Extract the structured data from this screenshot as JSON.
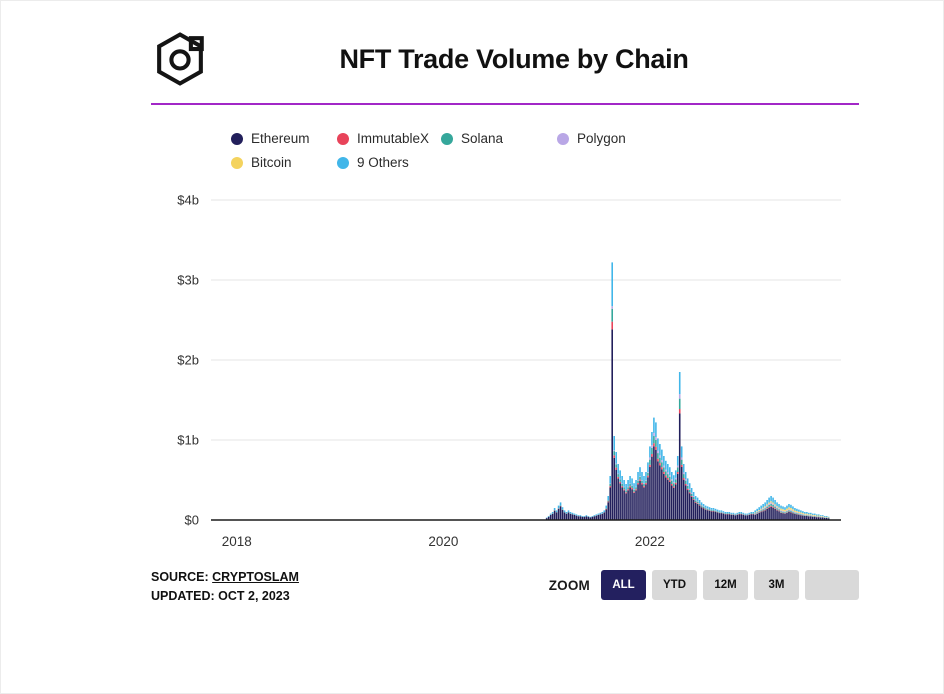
{
  "header": {
    "title": "NFT Trade Volume by Chain",
    "logo": "the-block-cube-logo"
  },
  "accent": {
    "rule_color": "#A227C7",
    "active_button_bg": "#23205F"
  },
  "footer": {
    "source_label": "SOURCE:",
    "source_value": "CRYPTOSLAM",
    "updated_label": "UPDATED:",
    "updated_value": "OCT 2, 2023"
  },
  "zoom": {
    "label": "ZOOM",
    "buttons": [
      {
        "label": "ALL",
        "active": true
      },
      {
        "label": "YTD",
        "active": false
      },
      {
        "label": "12M",
        "active": false
      },
      {
        "label": "3M",
        "active": false
      },
      {
        "label": "",
        "active": false
      }
    ]
  },
  "chart_data": {
    "type": "bar",
    "stacked": true,
    "title": "NFT Trade Volume by Chain",
    "unit": "USD billions per week",
    "y_ticks": [
      "$0",
      "$1b",
      "$2b",
      "$3b",
      "$4b"
    ],
    "y_tick_values": [
      0,
      1,
      2,
      3,
      4
    ],
    "ylim": [
      0,
      4
    ],
    "x_ticks": [
      2018,
      2020,
      2022
    ],
    "x_range": [
      2017.75,
      2023.85
    ],
    "grid": true,
    "legend_position": "top",
    "series": [
      {
        "name": "Ethereum",
        "color": "#221F5B"
      },
      {
        "name": "ImmutableX",
        "color": "#E8435A"
      },
      {
        "name": "Solana",
        "color": "#35A79B"
      },
      {
        "name": "Polygon",
        "color": "#B9A7E6"
      },
      {
        "name": "Bitcoin",
        "color": "#F4D35E"
      },
      {
        "name": "9 Others",
        "color": "#41B6E9"
      }
    ],
    "weeks_start": 2021.0,
    "weeks_step_years": 0.019231,
    "totals_billions": [
      0.03,
      0.05,
      0.08,
      0.1,
      0.15,
      0.12,
      0.18,
      0.22,
      0.16,
      0.12,
      0.1,
      0.12,
      0.1,
      0.09,
      0.08,
      0.07,
      0.06,
      0.06,
      0.05,
      0.05,
      0.06,
      0.05,
      0.04,
      0.05,
      0.06,
      0.07,
      0.08,
      0.09,
      0.1,
      0.12,
      0.18,
      0.3,
      0.55,
      3.22,
      1.05,
      0.85,
      0.7,
      0.62,
      0.55,
      0.5,
      0.45,
      0.5,
      0.55,
      0.52,
      0.46,
      0.5,
      0.6,
      0.66,
      0.6,
      0.55,
      0.6,
      0.72,
      0.92,
      1.1,
      1.28,
      1.22,
      1.02,
      0.95,
      0.88,
      0.8,
      0.74,
      0.7,
      0.66,
      0.6,
      0.56,
      0.62,
      0.8,
      1.85,
      0.92,
      0.7,
      0.6,
      0.52,
      0.46,
      0.4,
      0.35,
      0.3,
      0.28,
      0.25,
      0.22,
      0.2,
      0.18,
      0.17,
      0.16,
      0.15,
      0.15,
      0.14,
      0.13,
      0.12,
      0.12,
      0.11,
      0.1,
      0.1,
      0.1,
      0.09,
      0.09,
      0.08,
      0.09,
      0.1,
      0.1,
      0.09,
      0.08,
      0.08,
      0.09,
      0.1,
      0.1,
      0.12,
      0.14,
      0.16,
      0.18,
      0.2,
      0.22,
      0.25,
      0.28,
      0.3,
      0.28,
      0.25,
      0.22,
      0.2,
      0.18,
      0.17,
      0.16,
      0.18,
      0.2,
      0.19,
      0.17,
      0.15,
      0.14,
      0.13,
      0.12,
      0.11,
      0.1,
      0.1,
      0.09,
      0.09,
      0.08,
      0.08,
      0.07,
      0.07,
      0.06,
      0.06,
      0.05,
      0.05,
      0.04
    ],
    "mix_periods": [
      {
        "from_week": 0,
        "fractions": [
          0.78,
          0.01,
          0.03,
          0.01,
          0.0,
          0.17
        ]
      },
      {
        "from_week": 30,
        "fractions": [
          0.74,
          0.03,
          0.05,
          0.01,
          0.0,
          0.17
        ]
      },
      {
        "from_week": 52,
        "fractions": [
          0.72,
          0.03,
          0.07,
          0.03,
          0.0,
          0.15
        ]
      },
      {
        "from_week": 105,
        "fractions": [
          0.55,
          0.04,
          0.08,
          0.06,
          0.05,
          0.22
        ]
      },
      {
        "from_week": 118,
        "fractions": [
          0.5,
          0.03,
          0.08,
          0.06,
          0.12,
          0.21
        ]
      }
    ]
  }
}
